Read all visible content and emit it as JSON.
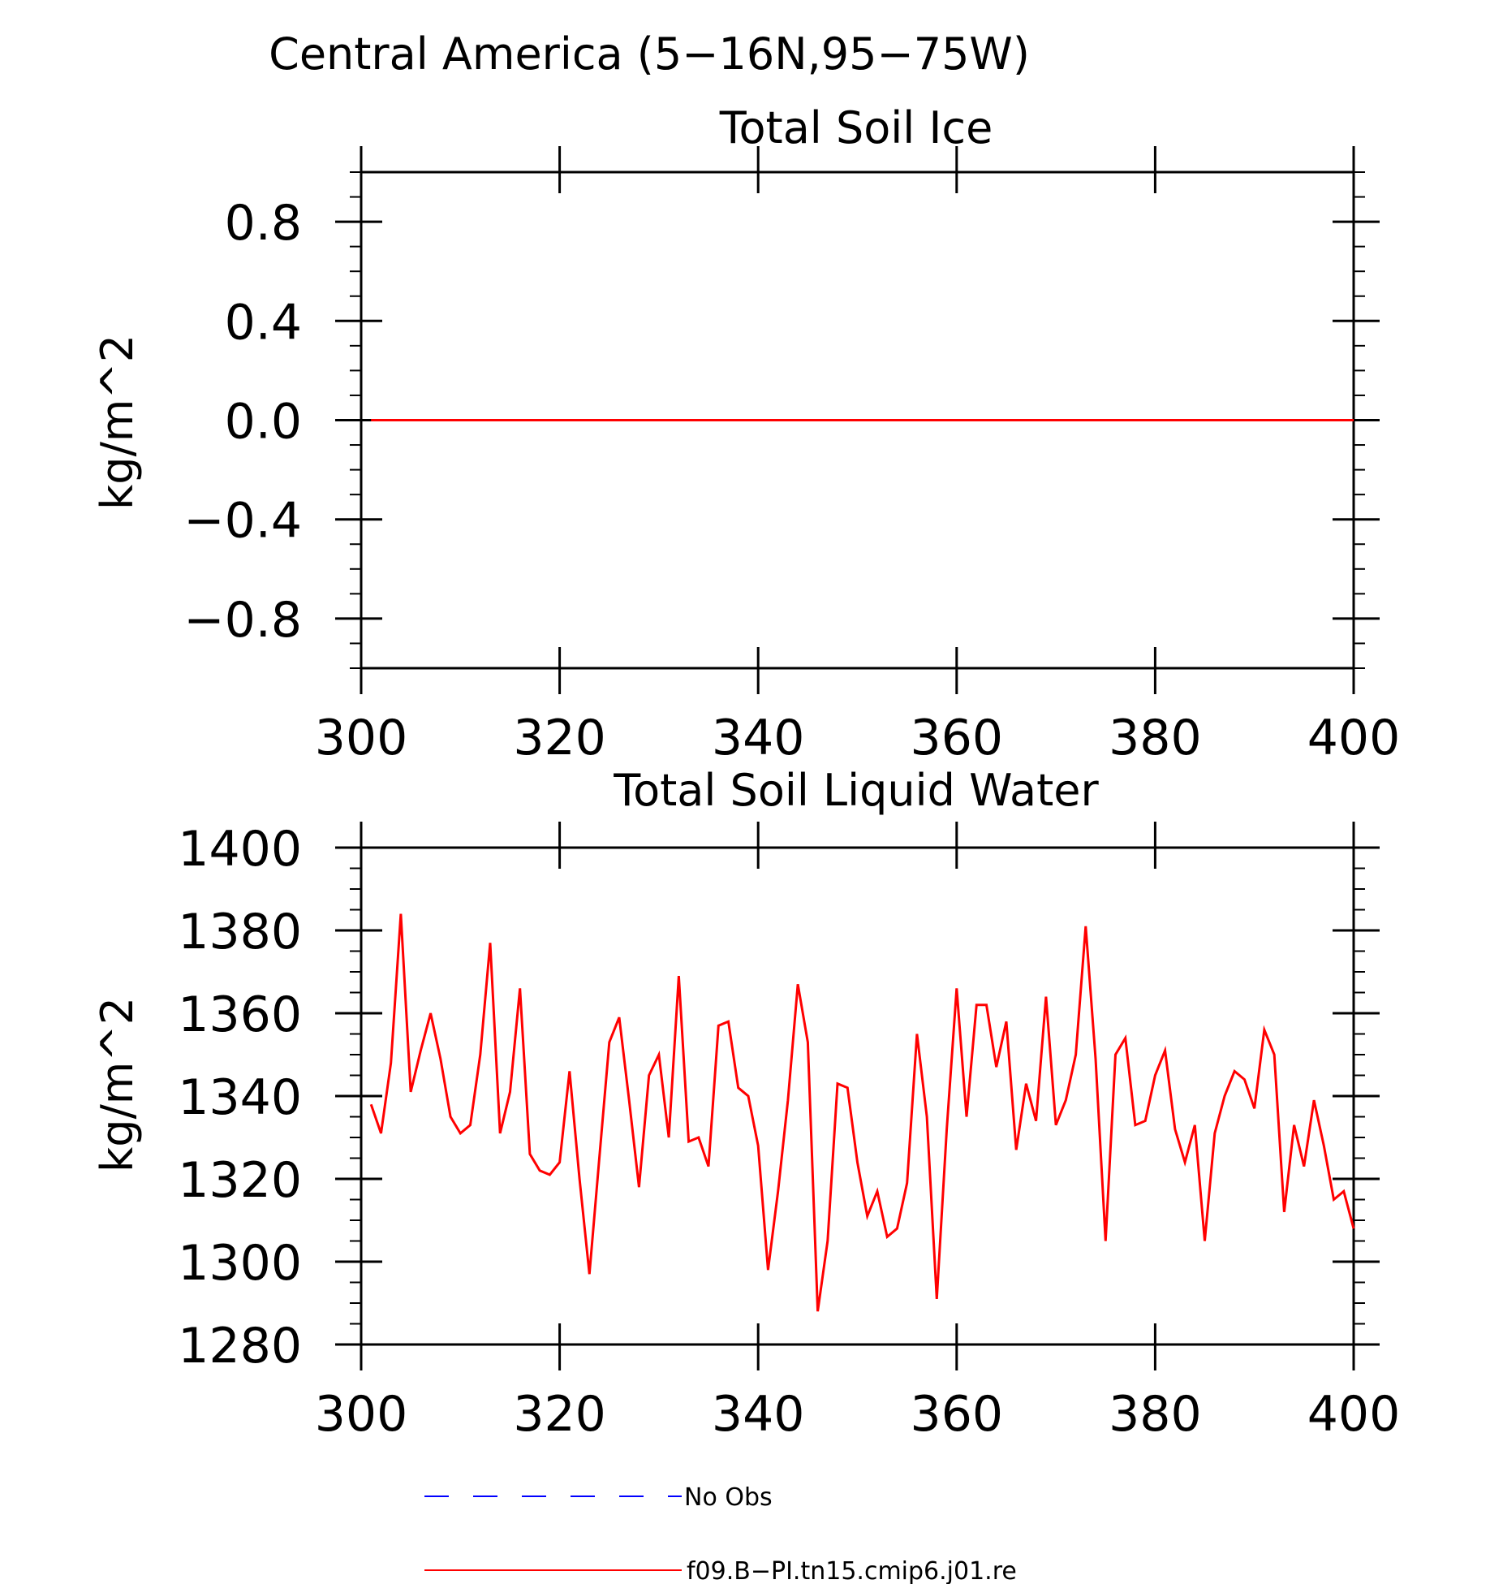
{
  "page": {
    "main_title": "Central America (5−16N,95−75W)"
  },
  "colors": {
    "model_line": "#ff0000",
    "obs_line": "#0000ff",
    "axis": "#000000"
  },
  "chart_data": [
    {
      "type": "line",
      "title": "Total Soil Ice",
      "xlabel": "",
      "ylabel": "kg/m^2",
      "xlim": [
        300,
        400
      ],
      "ylim": [
        -1,
        1
      ],
      "x_ticks": [
        300,
        320,
        340,
        360,
        380,
        400
      ],
      "x_tick_labels": [
        "300",
        "320",
        "340",
        "360",
        "380",
        "400"
      ],
      "y_ticks": [
        -0.8,
        -0.4,
        0.0,
        0.4,
        0.8
      ],
      "y_tick_labels": [
        "−0.8",
        "−0.4",
        "0.0",
        "0.4",
        "0.8"
      ],
      "grid": false,
      "series": [
        {
          "name": "f09.B−PI.tn15.cmip6.j01.re",
          "color": "#ff0000",
          "x": [
            301,
            400
          ],
          "values": [
            0,
            0
          ]
        }
      ]
    },
    {
      "type": "line",
      "title": "Total Soil Liquid Water",
      "xlabel": "",
      "ylabel": "kg/m^2",
      "xlim": [
        300,
        400
      ],
      "ylim": [
        1280,
        1400
      ],
      "x_ticks": [
        300,
        320,
        340,
        360,
        380,
        400
      ],
      "x_tick_labels": [
        "300",
        "320",
        "340",
        "360",
        "380",
        "400"
      ],
      "y_ticks": [
        1280,
        1300,
        1320,
        1340,
        1360,
        1380,
        1400
      ],
      "y_tick_labels": [
        "1280",
        "1300",
        "1320",
        "1340",
        "1360",
        "1380",
        "1400"
      ],
      "grid": false,
      "series": [
        {
          "name": "f09.B−PI.tn15.cmip6.j01.re",
          "color": "#ff0000",
          "x_start": 301,
          "x_step": 1,
          "values": [
            1338,
            1331,
            1348,
            1384,
            1341,
            1351,
            1360,
            1349,
            1335,
            1331,
            1333,
            1350,
            1377,
            1331,
            1341,
            1366,
            1326,
            1322,
            1321,
            1324,
            1346,
            1320,
            1297,
            1325,
            1353,
            1359,
            1339,
            1318,
            1345,
            1350,
            1330,
            1369,
            1329,
            1330,
            1323,
            1357,
            1358,
            1342,
            1340,
            1328,
            1298,
            1317,
            1339,
            1367,
            1353,
            1288,
            1305,
            1343,
            1342,
            1324,
            1311,
            1317,
            1306,
            1308,
            1319,
            1355,
            1335,
            1291,
            1332,
            1366,
            1335,
            1362,
            1362,
            1347,
            1358,
            1327,
            1343,
            1334,
            1364,
            1333,
            1339,
            1350,
            1381,
            1349,
            1305,
            1350,
            1354,
            1333,
            1334,
            1345,
            1351,
            1332,
            1324,
            1333,
            1305,
            1331,
            1340,
            1346,
            1344,
            1337,
            1356,
            1350,
            1312,
            1333,
            1323,
            1339,
            1328,
            1315,
            1317,
            1308
          ]
        }
      ]
    }
  ],
  "legend": {
    "items": [
      {
        "label": "No Obs",
        "style": "dashed",
        "color": "#0000ff"
      },
      {
        "label": "f09.B−PI.tn15.cmip6.j01.re",
        "style": "solid",
        "color": "#ff0000"
      }
    ]
  }
}
